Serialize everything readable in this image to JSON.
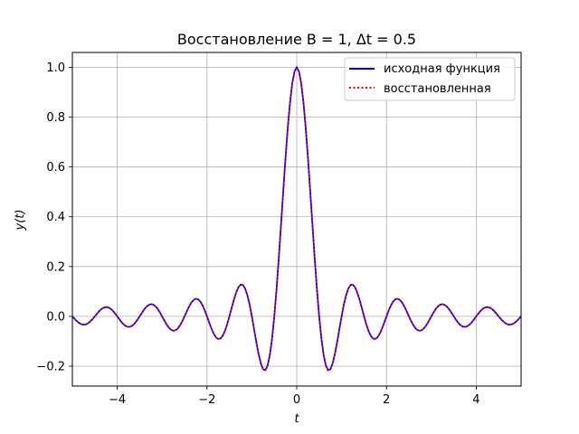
{
  "chart_data": {
    "type": "line",
    "title": "Восстановление B = 1, Δt = 0.5",
    "xlabel": "t",
    "ylabel": "y(t)",
    "xlim": [
      -5,
      5
    ],
    "ylim": [
      -0.28,
      1.06
    ],
    "xticks": [
      -4,
      -2,
      0,
      2,
      4
    ],
    "xtick_labels": [
      "−4",
      "−2",
      "0",
      "2",
      "4"
    ],
    "yticks": [
      -0.2,
      0.0,
      0.2,
      0.4,
      0.6,
      0.8,
      1.0
    ],
    "ytick_labels": [
      "−0.2",
      "0.0",
      "0.2",
      "0.4",
      "0.6",
      "0.8",
      "1.0"
    ],
    "grid": true,
    "legend_position": "top-right",
    "series": [
      {
        "name": "исходная функция",
        "color": "#0000ff",
        "style": "solid",
        "function": "sinc(2*B*t)",
        "x_range": [
          -5,
          5
        ],
        "points": 201
      },
      {
        "name": "восстановленная",
        "color": "#ff0000",
        "style": "dotted",
        "function": "sum of sinc interpolants over samples at step 0.5",
        "x_range": [
          -5,
          5
        ],
        "points": 201
      }
    ]
  }
}
